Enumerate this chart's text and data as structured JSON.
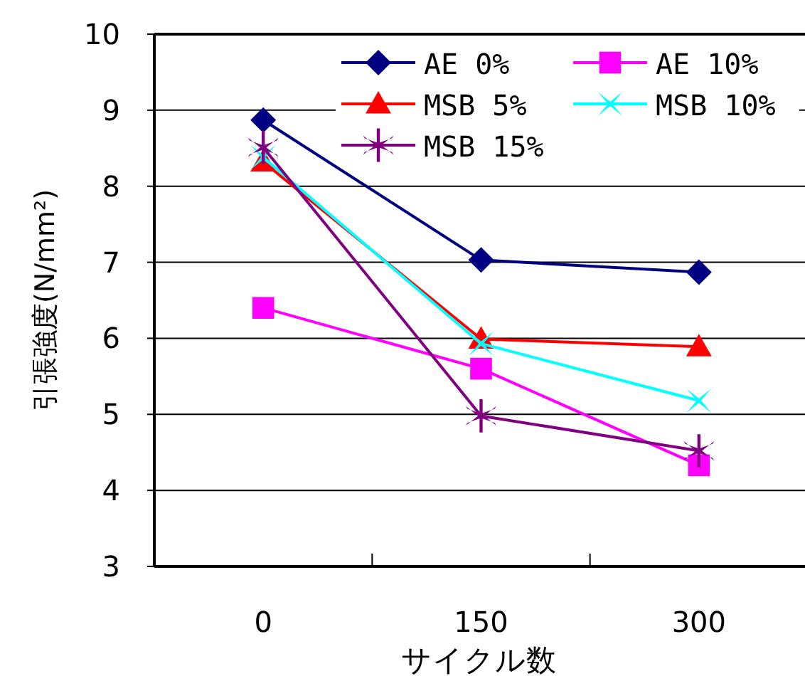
{
  "chart_data": {
    "type": "line",
    "xlabel": "サイクル数",
    "ylabel": "引張強度(N/mm²)",
    "categories": [
      "0",
      "150",
      "300"
    ],
    "series": [
      {
        "name": "AE  0%",
        "color": "#000080",
        "marker": "diamond",
        "values": [
          8.87,
          7.03,
          6.87
        ]
      },
      {
        "name": "AE  10%",
        "color": "#ff00ff",
        "marker": "square",
        "values": [
          6.4,
          5.6,
          4.33
        ]
      },
      {
        "name": "MSB  5%",
        "color": "#ff0000",
        "marker": "triangle",
        "values": [
          8.32,
          5.99,
          5.89
        ]
      },
      {
        "name": "MSB  10%",
        "color": "#00ffff",
        "marker": "cross",
        "values": [
          8.38,
          5.93,
          5.18
        ]
      },
      {
        "name": "MSB  15%",
        "color": "#800080",
        "marker": "star",
        "values": [
          8.51,
          4.98,
          4.52
        ]
      }
    ],
    "ylim": [
      3,
      10
    ],
    "yticks": [
      3,
      4,
      5,
      6,
      7,
      8,
      9,
      10
    ],
    "grid": "y",
    "legend": "top right",
    "line_style": "solid"
  }
}
